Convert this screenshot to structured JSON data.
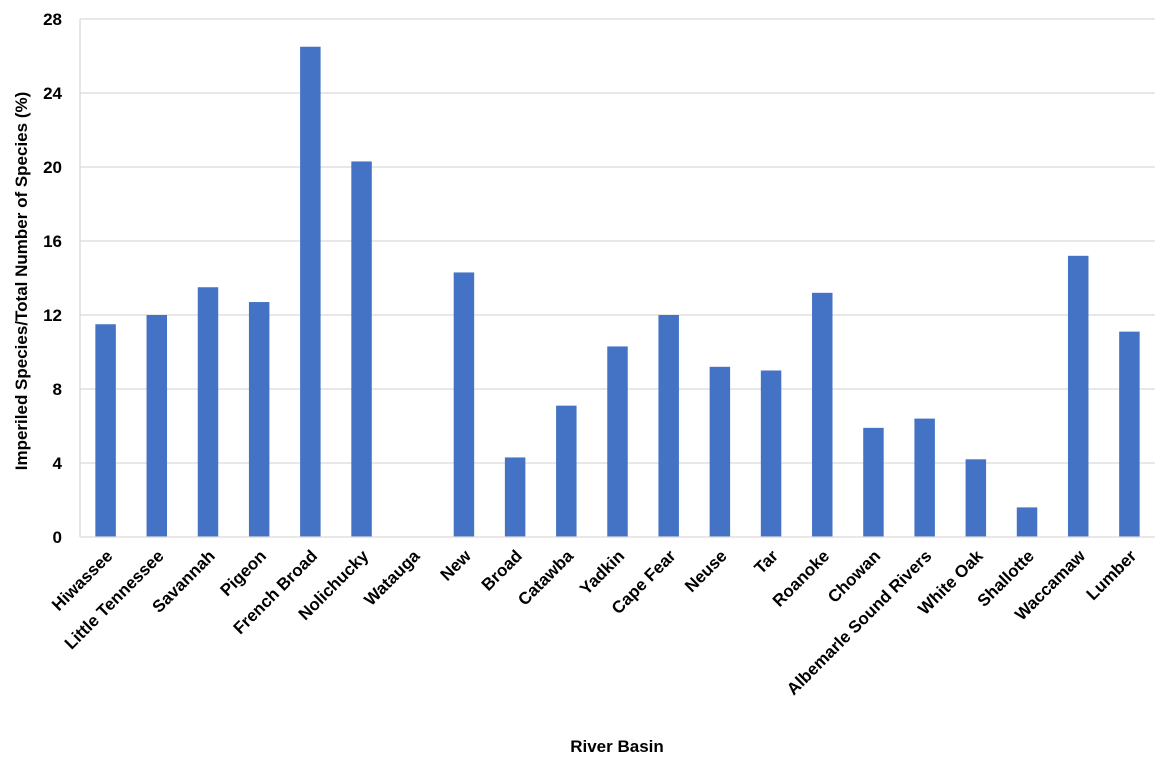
{
  "chart_data": {
    "type": "bar",
    "title": "",
    "xlabel": "River Basin",
    "ylabel": "Imperiled  Species/Total Number of Species (%)",
    "ylim": [
      0,
      28
    ],
    "yticks": [
      0,
      4,
      8,
      12,
      16,
      20,
      24,
      28
    ],
    "grid": true,
    "legend": "none",
    "bar_color": "#4472C4",
    "grid_color": "#D9D9D9",
    "categories": [
      "Hiwassee",
      "Little Tennessee",
      "Savannah",
      "Pigeon",
      "French Broad",
      "Nolichucky",
      "Watauga",
      "New",
      "Broad",
      "Catawba",
      "Yadkin",
      "Cape Fear",
      "Neuse",
      "Tar",
      "Roanoke",
      "Chowan",
      "Albemarle Sound Rivers",
      "White Oak",
      "Shallotte",
      "Waccamaw",
      "Lumber"
    ],
    "values": [
      11.5,
      12.0,
      13.5,
      12.7,
      26.5,
      20.3,
      0,
      14.3,
      4.3,
      7.1,
      10.3,
      12.0,
      9.2,
      9.0,
      13.2,
      5.9,
      6.4,
      4.2,
      1.6,
      15.2,
      11.1
    ]
  }
}
